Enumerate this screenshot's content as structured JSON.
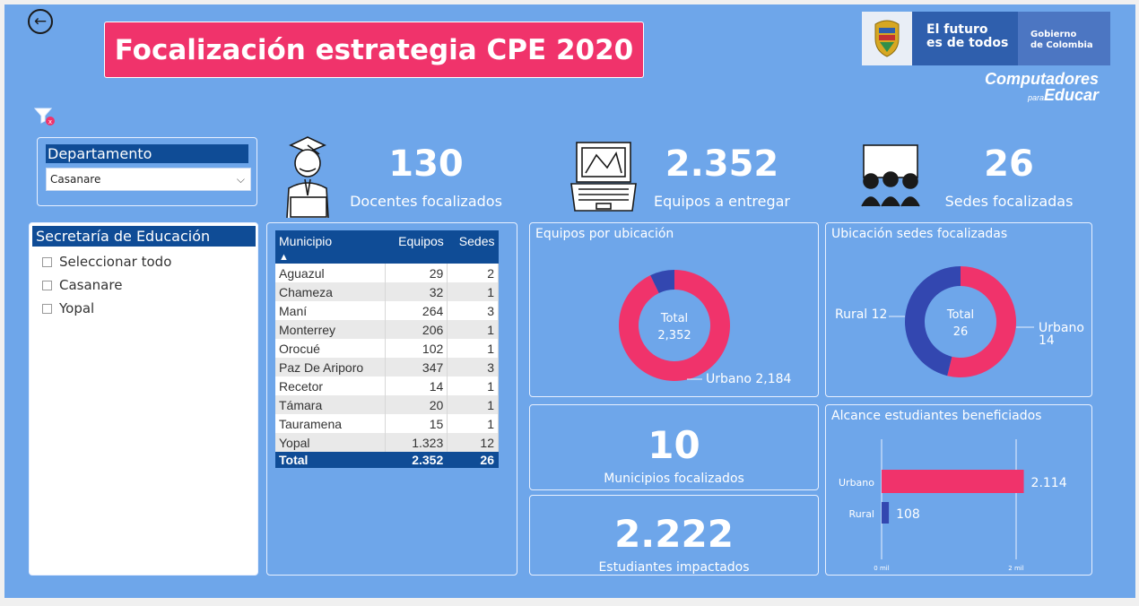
{
  "header": {
    "title": "Focalización estrategia CPE 2020",
    "logo_futuro_line1": "El futuro",
    "logo_futuro_line2": "es de todos",
    "logo_gobierno_line1": "Gobierno",
    "logo_gobierno_line2": "de Colombia",
    "logo_cpe_line1": "Computadores",
    "logo_cpe_para": "para",
    "logo_cpe_line2": "Educar",
    "back_icon": "arrow-left-icon",
    "filter_icon": "filter-icon"
  },
  "colors": {
    "background": "#6ea6ea",
    "accent_pink": "#f0336b",
    "navy": "#0f4c96",
    "blue_series": "#3347b0"
  },
  "slicers": {
    "departamento": {
      "label": "Departamento",
      "selected": "Casanare"
    },
    "secretaria": {
      "label": "Secretaría de Educación",
      "items": [
        {
          "label": "Seleccionar todo"
        },
        {
          "label": "Casanare"
        },
        {
          "label": "Yopal"
        }
      ]
    }
  },
  "kpis": {
    "docentes": {
      "value": "130",
      "label": "Docentes focalizados"
    },
    "equipos": {
      "value": "2.352",
      "label": "Equipos a entregar"
    },
    "sedes": {
      "value": "26",
      "label": "Sedes focalizadas"
    },
    "municipios": {
      "value": "10",
      "label": "Municipios focalizados"
    },
    "estudiantes": {
      "value": "2.222",
      "label": "Estudiantes impactados"
    }
  },
  "table": {
    "headers": [
      "Municipio",
      "Equipos",
      "Sedes"
    ],
    "sort_indicator": "▲",
    "rows": [
      {
        "municipio": "Aguazul",
        "equipos": "29",
        "sedes": "2"
      },
      {
        "municipio": "Chameza",
        "equipos": "32",
        "sedes": "1"
      },
      {
        "municipio": "Maní",
        "equipos": "264",
        "sedes": "3"
      },
      {
        "municipio": "Monterrey",
        "equipos": "206",
        "sedes": "1"
      },
      {
        "municipio": "Orocué",
        "equipos": "102",
        "sedes": "1"
      },
      {
        "municipio": "Paz De Ariporo",
        "equipos": "347",
        "sedes": "3"
      },
      {
        "municipio": "Recetor",
        "equipos": "14",
        "sedes": "1"
      },
      {
        "municipio": "Támara",
        "equipos": "20",
        "sedes": "1"
      },
      {
        "municipio": "Tauramena",
        "equipos": "15",
        "sedes": "1"
      },
      {
        "municipio": "Yopal",
        "equipos": "1.323",
        "sedes": "12"
      }
    ],
    "total": {
      "label": "Total",
      "equipos": "2.352",
      "sedes": "26"
    }
  },
  "chart_data": [
    {
      "type": "pie",
      "title": "Equipos por ubicación",
      "center_label_line1": "Total",
      "center_label_line2": "2,352",
      "series": [
        {
          "name": "Urbano",
          "value": 2184,
          "color": "#f0336b"
        },
        {
          "name": "Rural",
          "value": 168,
          "color": "#3347b0"
        }
      ],
      "labels": [
        {
          "text": "Urbano 2,184"
        }
      ]
    },
    {
      "type": "pie",
      "title": "Ubicación sedes focalizadas",
      "center_label_line1": "Total",
      "center_label_line2": "26",
      "series": [
        {
          "name": "Urbano",
          "value": 14,
          "color": "#f0336b"
        },
        {
          "name": "Rural",
          "value": 12,
          "color": "#3347b0"
        }
      ],
      "labels": [
        {
          "text": "Rural 12"
        },
        {
          "text": "Urbano"
        },
        {
          "text": "14"
        }
      ]
    },
    {
      "type": "bar",
      "title": "Alcance estudiantes beneficiados",
      "categories": [
        "Urbano",
        "Rural"
      ],
      "values": [
        2114,
        108
      ],
      "value_labels": [
        "2.114",
        "108"
      ],
      "colors": [
        "#f0336b",
        "#3347b0"
      ],
      "xlim": [
        0,
        2000
      ],
      "xticks": [
        "0 mil",
        "2 mil"
      ]
    }
  ]
}
